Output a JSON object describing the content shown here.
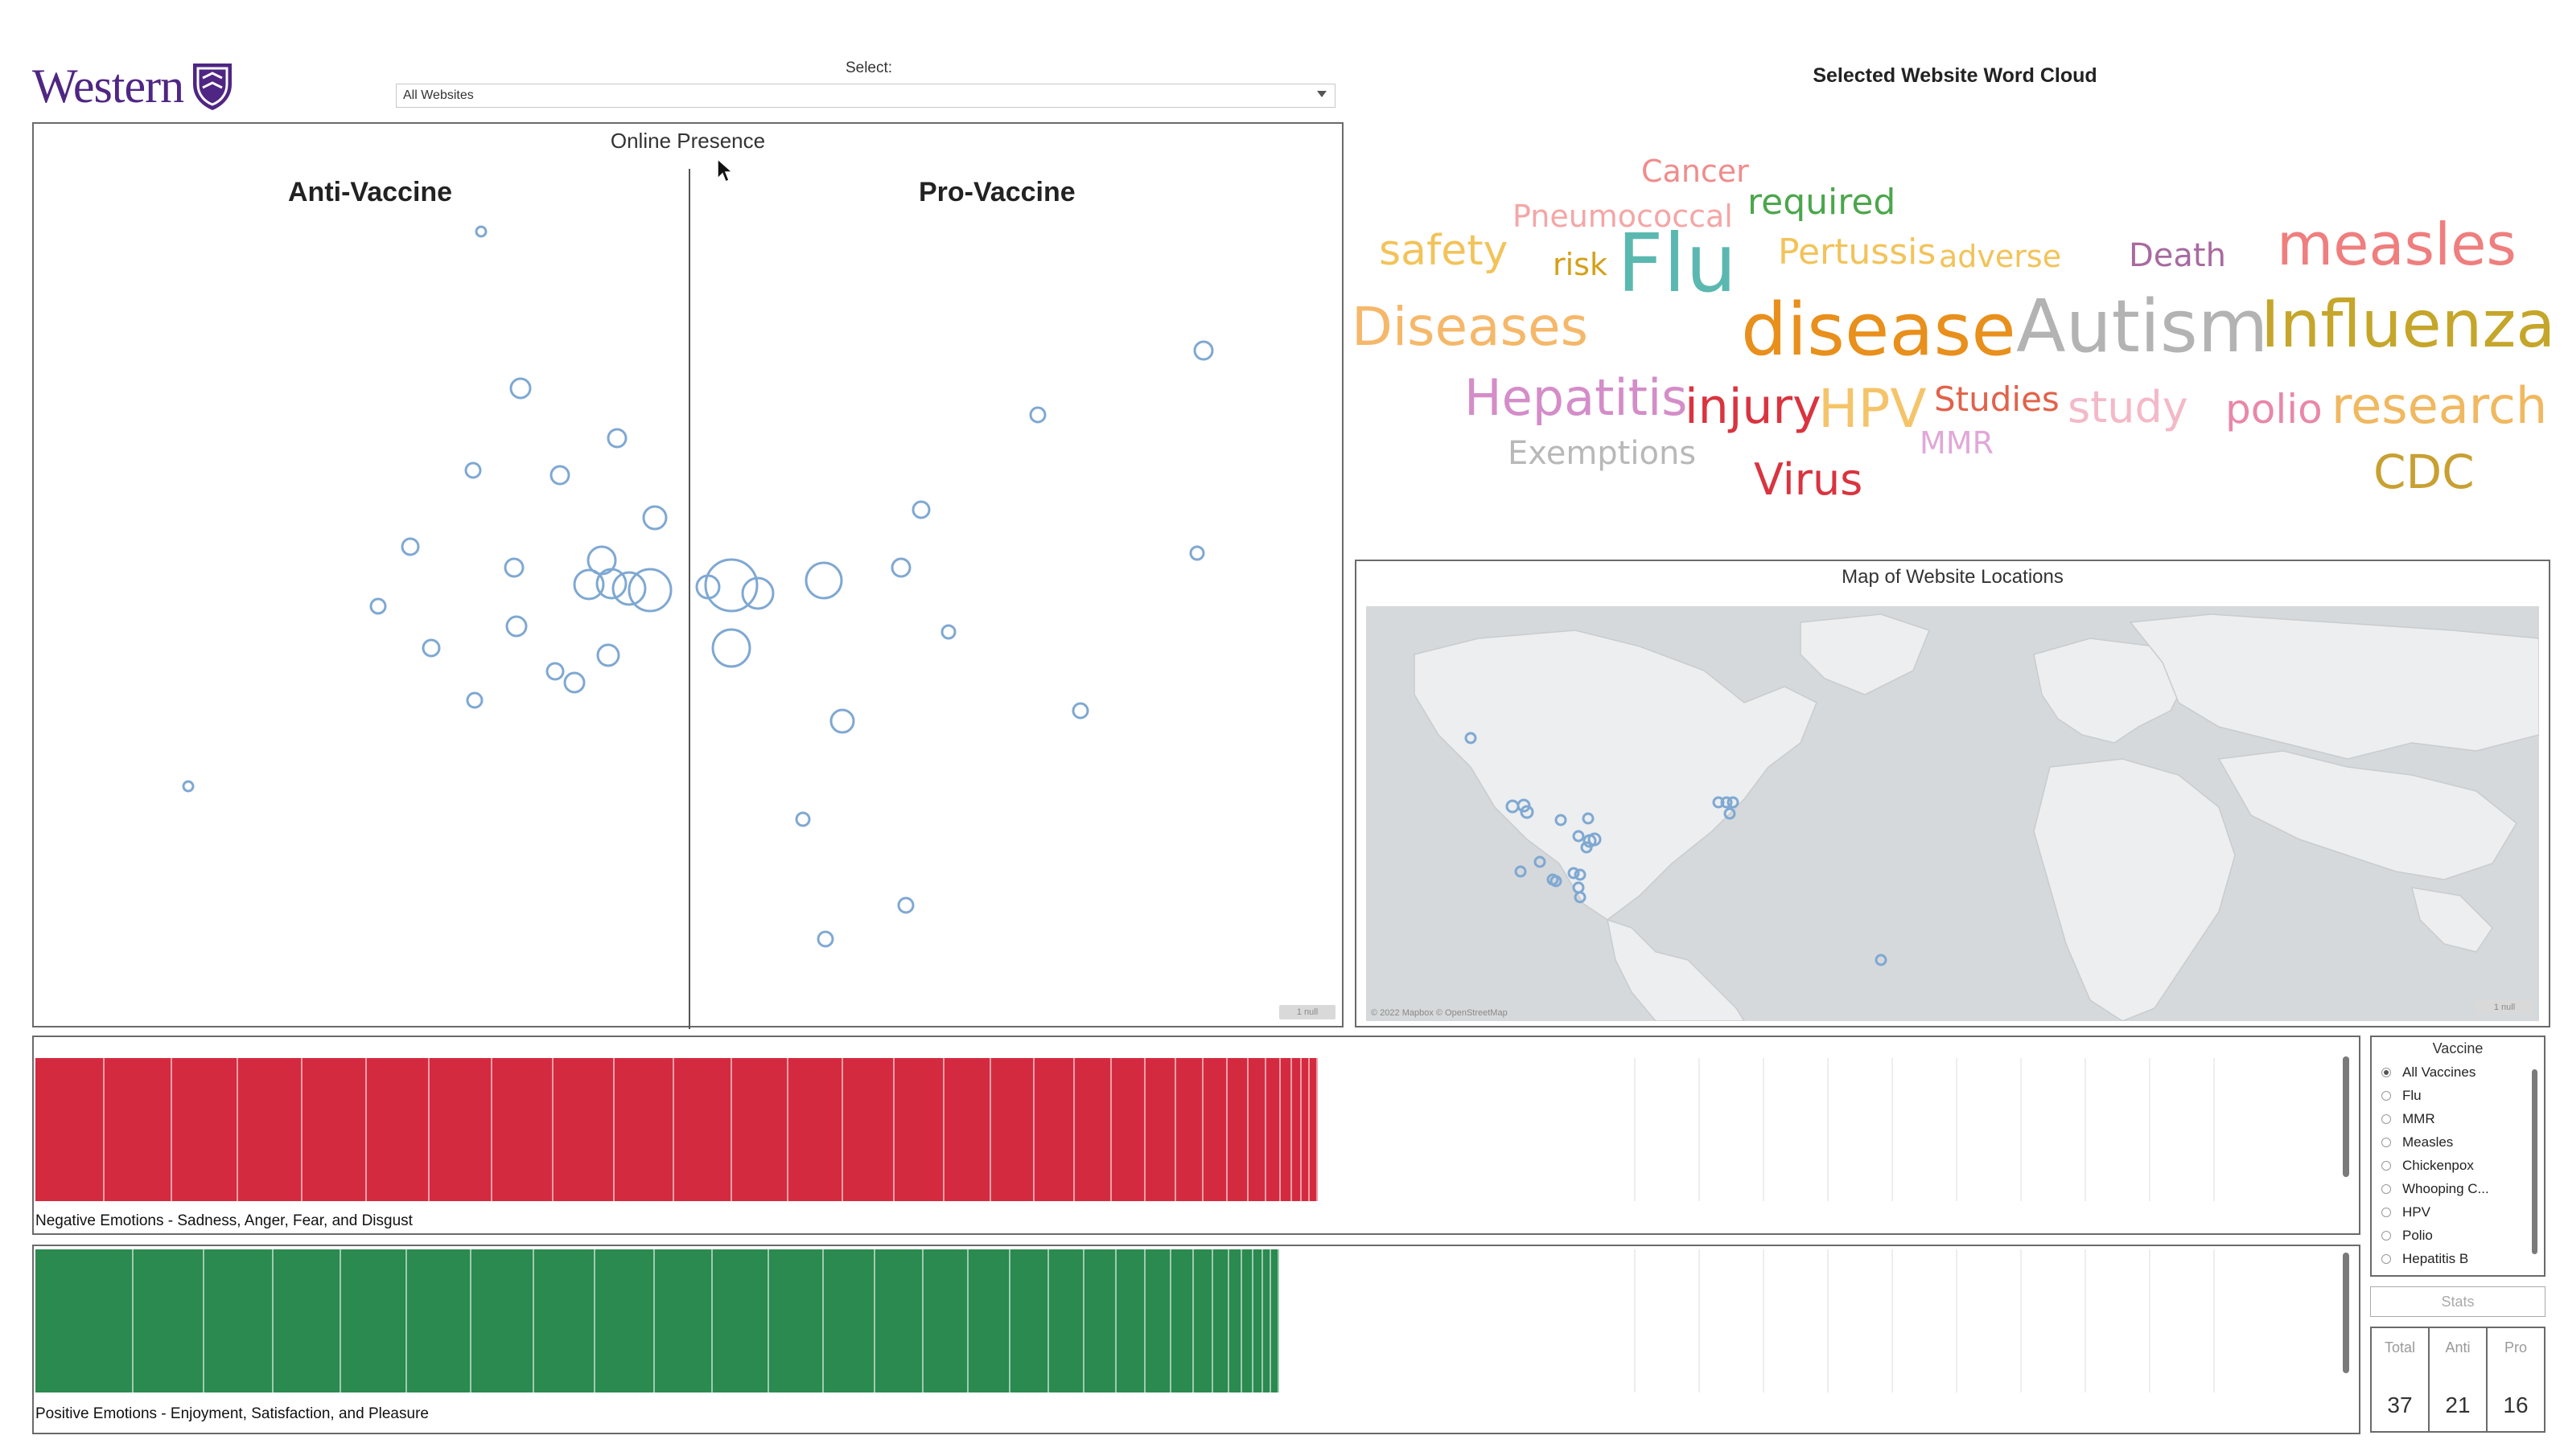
{
  "header": {
    "logo_text": "Western",
    "select_label": "Select:",
    "select_value": "All Websites"
  },
  "online_presence": {
    "title": "Online Presence",
    "left_label": "Anti-Vaccine",
    "right_label": "Pro-Vaccine"
  },
  "word_cloud": {
    "title": "Selected Website Word Cloud",
    "words": [
      {
        "text": "Cancer",
        "color": "#f08c8c"
      },
      {
        "text": "Pneumococcal",
        "color": "#f4a6a6"
      },
      {
        "text": "required",
        "color": "#4ca64c"
      },
      {
        "text": "safety",
        "color": "#f2c35a"
      },
      {
        "text": "risk",
        "color": "#d4a017"
      },
      {
        "text": "Flu",
        "color": "#5bb8b0"
      },
      {
        "text": "Pertussis",
        "color": "#f2c35a"
      },
      {
        "text": "adverse",
        "color": "#f2c35a"
      },
      {
        "text": "Death",
        "color": "#a86aa0"
      },
      {
        "text": "measles",
        "color": "#ef7e7e"
      },
      {
        "text": "Diseases",
        "color": "#f5b86a"
      },
      {
        "text": "disease",
        "color": "#e88f1c"
      },
      {
        "text": "Autism",
        "color": "#b3b3b3"
      },
      {
        "text": "Influenza",
        "color": "#c5a62a"
      },
      {
        "text": "Hepatitis",
        "color": "#d48dc8"
      },
      {
        "text": "injury",
        "color": "#d9343f"
      },
      {
        "text": "HPV",
        "color": "#f5c46a"
      },
      {
        "text": "Studies",
        "color": "#e0624a"
      },
      {
        "text": "study",
        "color": "#f4b9c8"
      },
      {
        "text": "polio",
        "color": "#e888a8"
      },
      {
        "text": "research",
        "color": "#f0b860"
      },
      {
        "text": "Exemptions",
        "color": "#b8b8b8"
      },
      {
        "text": "MMR",
        "color": "#e0a8d8"
      },
      {
        "text": "Virus",
        "color": "#d9343f"
      },
      {
        "text": "CDC",
        "color": "#c8a032"
      }
    ]
  },
  "map": {
    "title": "Map of Website Locations",
    "credit": "© 2022 Mapbox © OpenStreetMap",
    "hint": "1 null"
  },
  "scatter_hint": "1 null",
  "emotions": {
    "negative_label": "Negative Emotions - Sadness, Anger, Fear, and Disgust",
    "positive_label": "Positive Emotions - Enjoyment, Satisfaction, and Pleasure",
    "negative_color": "#d42a3f",
    "positive_color": "#2a8a4f"
  },
  "vaccine_filter": {
    "title": "Vaccine",
    "options": [
      "All Vaccines",
      "Flu",
      "MMR",
      "Measles",
      "Chickenpox",
      "Whooping C...",
      "HPV",
      "Polio",
      "Hepatitis B"
    ],
    "selected": "All Vaccines"
  },
  "stats": {
    "button_label": "Stats",
    "total_label": "Total",
    "anti_label": "Anti",
    "pro_label": "Pro",
    "total": "37",
    "anti": "21",
    "pro": "16"
  }
}
